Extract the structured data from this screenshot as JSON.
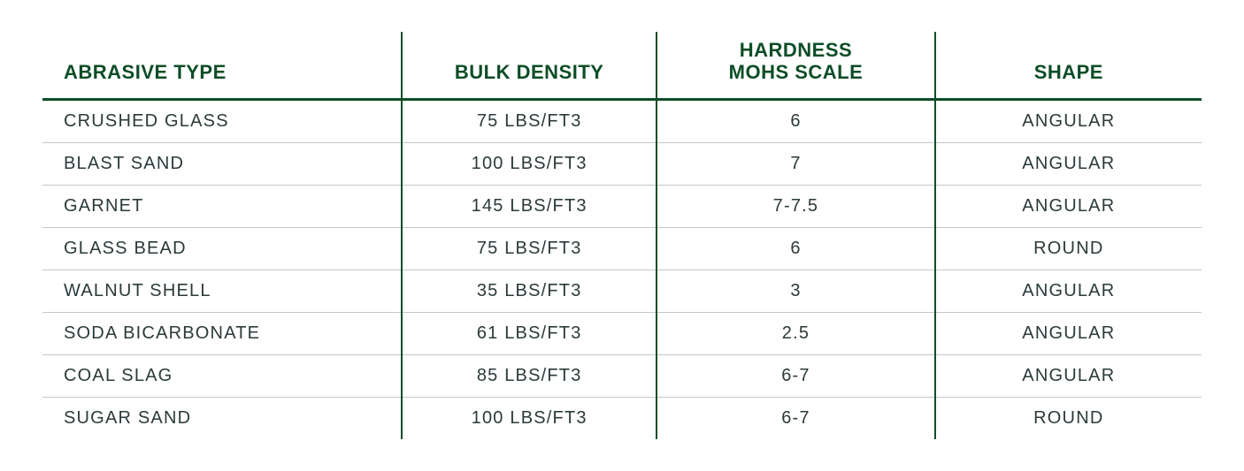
{
  "table": {
    "type": "table",
    "header_color": "#0d4d26",
    "body_text_color": "#2b3a3a",
    "header_rule_color": "#0d4d26",
    "row_border_color": "#bfc8c8",
    "background_color": "#ffffff",
    "header_fontsize_pt": 17,
    "body_fontsize_pt": 15,
    "column_widths_pct": [
      31,
      22,
      24,
      23
    ],
    "column_align": [
      "left",
      "center",
      "center",
      "center"
    ],
    "columns": [
      "ABRASIVE TYPE",
      "BULK DENSITY",
      "HARDNESS\nMOHS SCALE",
      "SHAPE"
    ],
    "rows": [
      {
        "type": "CRUSHED GLASS",
        "density": "75 LBS/FT3",
        "hardness": "6",
        "shape": "ANGULAR"
      },
      {
        "type": "BLAST SAND",
        "density": "100 LBS/FT3",
        "hardness": "7",
        "shape": "ANGULAR"
      },
      {
        "type": "GARNET",
        "density": "145 LBS/FT3",
        "hardness": "7-7.5",
        "shape": "ANGULAR"
      },
      {
        "type": "GLASS BEAD",
        "density": "75 LBS/FT3",
        "hardness": "6",
        "shape": "ROUND"
      },
      {
        "type": "WALNUT SHELL",
        "density": "35 LBS/FT3",
        "hardness": "3",
        "shape": "ANGULAR"
      },
      {
        "type": "SODA BICARBONATE",
        "density": "61 LBS/FT3",
        "hardness": "2.5",
        "shape": "ANGULAR"
      },
      {
        "type": "COAL SLAG",
        "density": "85 LBS/FT3",
        "hardness": "6-7",
        "shape": "ANGULAR"
      },
      {
        "type": "SUGAR SAND",
        "density": "100 LBS/FT3",
        "hardness": "6-7",
        "shape": "ROUND"
      }
    ]
  }
}
